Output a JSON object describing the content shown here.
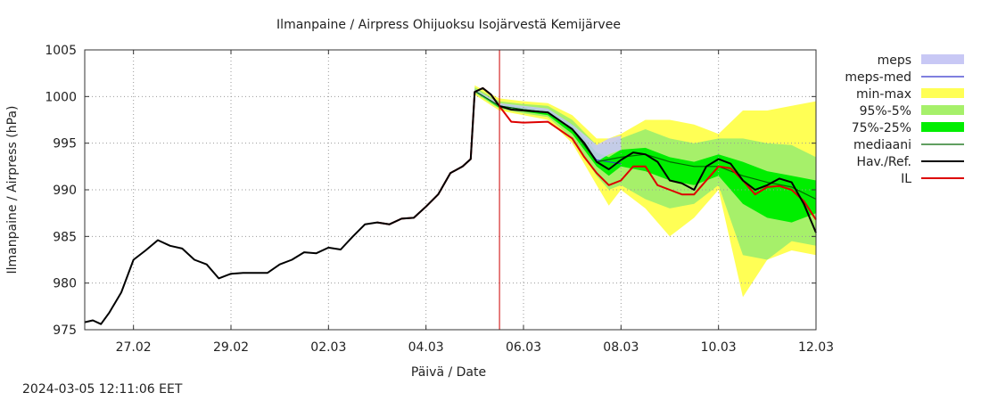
{
  "timestamp": "2024-03-05 12:11:06 EET",
  "chart_data": {
    "type": "line",
    "title": "Ilmanpaine / Airpress Ohijuoksu Isojärvestä Kemijärvee",
    "xlabel": "Päivä / Date",
    "ylabel": "Ilmanpaine / Airpress (hPa)",
    "xlim": [
      "2024-02-26T00:00",
      "2024-03-12T00:00"
    ],
    "ylim": [
      975,
      1005
    ],
    "yticks": [
      975,
      980,
      985,
      990,
      995,
      1000,
      1005
    ],
    "xticks": [
      {
        "t": "2024-02-27T00:00",
        "label": "27.02"
      },
      {
        "t": "2024-02-29T00:00",
        "label": "29.02"
      },
      {
        "t": "2024-03-02T00:00",
        "label": "02.03"
      },
      {
        "t": "2024-03-04T00:00",
        "label": "04.03"
      },
      {
        "t": "2024-03-06T00:00",
        "label": "06.03"
      },
      {
        "t": "2024-03-08T00:00",
        "label": "08.03"
      },
      {
        "t": "2024-03-10T00:00",
        "label": "10.03"
      },
      {
        "t": "2024-03-12T00:00",
        "label": "12.03"
      }
    ],
    "grid": true,
    "legend_position": "right",
    "now_marker": "2024-03-05T12:11",
    "now_marker_color": "#cc0000",
    "legend": [
      {
        "key": "meps",
        "label": "meps",
        "color": "#c8c8f5",
        "kind": "band"
      },
      {
        "key": "meps_med",
        "label": "meps-med",
        "color": "#3333cc",
        "kind": "line"
      },
      {
        "key": "minmax",
        "label": "min-max",
        "color": "#ffff55",
        "kind": "band"
      },
      {
        "key": "p95_5",
        "label": "95%-5%",
        "color": "#a6f06a",
        "kind": "band"
      },
      {
        "key": "p75_25",
        "label": "75%-25%",
        "color": "#00ee00",
        "kind": "band"
      },
      {
        "key": "median",
        "label": "mediaani",
        "color": "#006600",
        "kind": "line"
      },
      {
        "key": "obs",
        "label": "Hav./Ref.",
        "color": "#000000",
        "kind": "line"
      },
      {
        "key": "il",
        "label": "IL",
        "color": "#dd0000",
        "kind": "line"
      }
    ],
    "series": {
      "obs": {
        "x": [
          "2024-02-26T00:00",
          "2024-02-26T04:00",
          "2024-02-26T08:00",
          "2024-02-26T12:00",
          "2024-02-26T18:00",
          "2024-02-27T00:00",
          "2024-02-27T06:00",
          "2024-02-27T12:00",
          "2024-02-27T18:00",
          "2024-02-28T00:00",
          "2024-02-28T06:00",
          "2024-02-28T12:00",
          "2024-02-28T18:00",
          "2024-02-29T00:00",
          "2024-02-29T06:00",
          "2024-02-29T12:00",
          "2024-02-29T18:00",
          "2024-03-01T00:00",
          "2024-03-01T06:00",
          "2024-03-01T12:00",
          "2024-03-01T18:00",
          "2024-03-02T00:00",
          "2024-03-02T06:00",
          "2024-03-02T12:00",
          "2024-03-02T18:00",
          "2024-03-03T00:00",
          "2024-03-03T06:00",
          "2024-03-03T12:00",
          "2024-03-03T18:00",
          "2024-03-04T00:00",
          "2024-03-04T06:00",
          "2024-03-04T12:00",
          "2024-03-04T18:00",
          "2024-03-04T22:00",
          "2024-03-05T00:00",
          "2024-03-05T04:00",
          "2024-03-05T08:00",
          "2024-03-05T12:00",
          "2024-03-05T18:00",
          "2024-03-06T00:00",
          "2024-03-06T12:00",
          "2024-03-07T00:00",
          "2024-03-07T06:00",
          "2024-03-07T12:00",
          "2024-03-07T18:00",
          "2024-03-08T00:00",
          "2024-03-08T06:00",
          "2024-03-08T12:00",
          "2024-03-08T18:00",
          "2024-03-09T00:00",
          "2024-03-09T06:00",
          "2024-03-09T12:00",
          "2024-03-09T18:00",
          "2024-03-10T00:00",
          "2024-03-10T06:00",
          "2024-03-10T12:00",
          "2024-03-10T18:00",
          "2024-03-11T00:00",
          "2024-03-11T06:00",
          "2024-03-11T12:00",
          "2024-03-11T18:00",
          "2024-03-12T00:00"
        ],
        "y": [
          975.8,
          976.0,
          975.6,
          976.8,
          979.0,
          982.5,
          983.5,
          984.6,
          984.0,
          983.7,
          982.5,
          982.0,
          980.5,
          981.0,
          981.1,
          981.1,
          981.1,
          982.0,
          982.5,
          983.3,
          983.2,
          983.8,
          983.6,
          985.0,
          986.3,
          986.5,
          986.3,
          986.9,
          987.0,
          988.2,
          989.5,
          991.8,
          992.5,
          993.3,
          1000.5,
          1000.9,
          1000.2,
          999.0,
          998.6,
          998.5,
          998.3,
          996.5,
          995.0,
          993.0,
          992.2,
          993.2,
          994.0,
          993.8,
          993.0,
          991.0,
          990.7,
          990.0,
          992.5,
          993.3,
          992.8,
          991.0,
          990.0,
          990.5,
          991.2,
          990.8,
          988.5,
          985.4
        ]
      },
      "il": {
        "x": [
          "2024-03-03T00:00",
          "2024-03-03T06:00",
          "2024-03-03T12:00",
          "2024-03-03T18:00",
          "2024-03-04T00:00",
          "2024-03-04T06:00",
          "2024-03-04T12:00",
          "2024-03-04T18:00",
          "2024-03-04T22:00",
          "2024-03-05T00:00",
          "2024-03-05T04:00",
          "2024-03-05T08:00",
          "2024-03-05T12:00",
          "2024-03-05T18:00",
          "2024-03-06T00:00",
          "2024-03-06T12:00",
          "2024-03-07T00:00",
          "2024-03-07T06:00",
          "2024-03-07T12:00",
          "2024-03-07T18:00",
          "2024-03-08T00:00",
          "2024-03-08T06:00",
          "2024-03-08T12:00",
          "2024-03-08T18:00",
          "2024-03-09T00:00",
          "2024-03-09T06:00",
          "2024-03-09T12:00",
          "2024-03-09T18:00",
          "2024-03-10T00:00",
          "2024-03-10T06:00",
          "2024-03-10T12:00",
          "2024-03-10T18:00",
          "2024-03-11T00:00",
          "2024-03-11T06:00",
          "2024-03-11T12:00",
          "2024-03-11T18:00",
          "2024-03-12T00:00"
        ],
        "y": [
          986.5,
          986.3,
          986.9,
          987.0,
          988.2,
          989.5,
          991.8,
          992.5,
          993.3,
          1000.5,
          1000.9,
          1000.2,
          999.0,
          997.3,
          997.2,
          997.3,
          995.5,
          993.5,
          991.8,
          990.5,
          991.0,
          992.5,
          992.5,
          990.5,
          990.0,
          989.5,
          989.5,
          991.0,
          992.5,
          992.3,
          991.0,
          989.5,
          990.3,
          990.4,
          990.0,
          988.8,
          986.8
        ]
      },
      "median": {
        "x": [
          "2024-03-05T00:00",
          "2024-03-05T12:00",
          "2024-03-06T00:00",
          "2024-03-06T12:00",
          "2024-03-07T00:00",
          "2024-03-07T12:00",
          "2024-03-08T00:00",
          "2024-03-08T12:00",
          "2024-03-09T00:00",
          "2024-03-09T12:00",
          "2024-03-10T00:00",
          "2024-03-10T12:00",
          "2024-03-11T00:00",
          "2024-03-11T12:00",
          "2024-03-12T00:00"
        ],
        "y": [
          1000.6,
          999.0,
          998.6,
          998.3,
          996.5,
          993.0,
          993.5,
          993.8,
          993.0,
          992.5,
          992.5,
          991.5,
          990.8,
          990.3,
          989.0
        ]
      },
      "meps_med": {
        "x": [
          "2024-03-05T00:00",
          "2024-03-05T12:00",
          "2024-03-06T00:00",
          "2024-03-06T12:00",
          "2024-03-07T00:00",
          "2024-03-07T12:00",
          "2024-03-08T00:00"
        ],
        "y": [
          1000.6,
          999.0,
          998.6,
          998.3,
          996.5,
          993.2,
          992.8
        ]
      },
      "minmax": {
        "x": [
          "2024-03-05T00:00",
          "2024-03-05T12:00",
          "2024-03-06T00:00",
          "2024-03-06T12:00",
          "2024-03-07T00:00",
          "2024-03-07T12:00",
          "2024-03-07T18:00",
          "2024-03-08T00:00",
          "2024-03-08T12:00",
          "2024-03-09T00:00",
          "2024-03-09T12:00",
          "2024-03-10T00:00",
          "2024-03-10T12:00",
          "2024-03-11T00:00",
          "2024-03-11T12:00",
          "2024-03-12T00:00"
        ],
        "lo": [
          1000.2,
          998.5,
          998.0,
          997.5,
          995.0,
          990.5,
          988.3,
          990.0,
          988.0,
          985.0,
          987.0,
          990.0,
          978.5,
          982.5,
          983.5,
          983.0
        ],
        "hi": [
          1001.2,
          999.8,
          999.5,
          999.3,
          998.0,
          995.5,
          995.5,
          996.0,
          997.5,
          997.5,
          997.0,
          996.0,
          998.5,
          998.5,
          999.0,
          999.5
        ]
      },
      "p95_5": {
        "x": [
          "2024-03-05T00:00",
          "2024-03-05T12:00",
          "2024-03-06T00:00",
          "2024-03-06T12:00",
          "2024-03-07T00:00",
          "2024-03-07T12:00",
          "2024-03-07T18:00",
          "2024-03-08T00:00",
          "2024-03-08T12:00",
          "2024-03-09T00:00",
          "2024-03-09T12:00",
          "2024-03-10T00:00",
          "2024-03-10T12:00",
          "2024-03-11T00:00",
          "2024-03-11T12:00",
          "2024-03-12T00:00"
        ],
        "lo": [
          1000.4,
          998.7,
          998.2,
          997.8,
          995.5,
          991.5,
          990.0,
          990.5,
          989.0,
          988.0,
          988.5,
          990.5,
          983.0,
          982.5,
          984.5,
          984.0
        ],
        "hi": [
          1001.0,
          999.5,
          999.2,
          999.0,
          997.5,
          994.8,
          995.0,
          995.5,
          996.5,
          995.5,
          995.0,
          995.5,
          995.5,
          995.0,
          994.8,
          993.5
        ]
      },
      "p75_25": {
        "x": [
          "2024-03-05T00:00",
          "2024-03-05T12:00",
          "2024-03-06T00:00",
          "2024-03-06T12:00",
          "2024-03-07T00:00",
          "2024-03-07T12:00",
          "2024-03-07T18:00",
          "2024-03-08T00:00",
          "2024-03-08T12:00",
          "2024-03-09T00:00",
          "2024-03-09T12:00",
          "2024-03-10T00:00",
          "2024-03-10T12:00",
          "2024-03-11T00:00",
          "2024-03-11T12:00",
          "2024-03-12T00:00"
        ],
        "lo": [
          1000.5,
          998.8,
          998.4,
          998.0,
          996.0,
          992.5,
          991.5,
          992.5,
          992.0,
          991.0,
          990.5,
          991.5,
          988.5,
          987.0,
          986.5,
          987.5
        ],
        "hi": [
          1000.8,
          999.2,
          998.9,
          998.6,
          997.0,
          994.0,
          993.5,
          994.3,
          994.5,
          993.5,
          993.0,
          993.8,
          993.0,
          992.0,
          991.5,
          991.0
        ]
      },
      "meps": {
        "x": [
          "2024-03-05T00:00",
          "2024-03-05T12:00",
          "2024-03-06T00:00",
          "2024-03-06T12:00",
          "2024-03-07T00:00",
          "2024-03-07T12:00",
          "2024-03-07T18:00",
          "2024-03-08T00:00"
        ],
        "lo": [
          1000.5,
          998.9,
          998.5,
          998.2,
          996.4,
          993.0,
          993.8,
          994.3
        ],
        "hi": [
          1000.8,
          999.3,
          999.0,
          998.7,
          997.0,
          994.8,
          995.5,
          995.8
        ]
      }
    }
  }
}
